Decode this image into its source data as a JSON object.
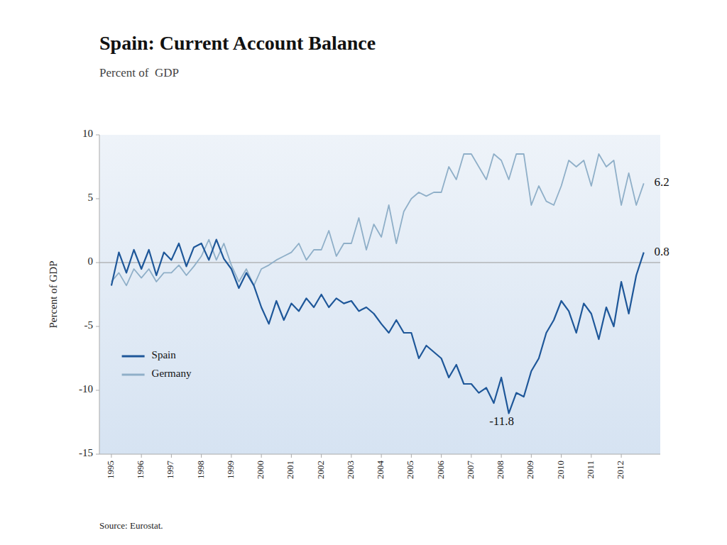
{
  "chart_data": {
    "type": "line",
    "title": "Spain: Current Account Balance",
    "subtitle": "Percent of  GDP",
    "y_label": "Percent of GDP",
    "source": "Source: Eurostat.",
    "x": [
      1995,
      1995.25,
      1995.5,
      1995.75,
      1996,
      1996.25,
      1996.5,
      1996.75,
      1997,
      1997.25,
      1997.5,
      1997.75,
      1998,
      1998.25,
      1998.5,
      1998.75,
      1999,
      1999.25,
      1999.5,
      1999.75,
      2000,
      2000.25,
      2000.5,
      2000.75,
      2001,
      2001.25,
      2001.5,
      2001.75,
      2002,
      2002.25,
      2002.5,
      2002.75,
      2003,
      2003.25,
      2003.5,
      2003.75,
      2004,
      2004.25,
      2004.5,
      2004.75,
      2005,
      2005.25,
      2005.5,
      2005.75,
      2006,
      2006.25,
      2006.5,
      2006.75,
      2007,
      2007.25,
      2007.5,
      2007.75,
      2008,
      2008.25,
      2008.5,
      2008.75,
      2009,
      2009.25,
      2009.5,
      2009.75,
      2010,
      2010.25,
      2010.5,
      2010.75,
      2011,
      2011.25,
      2011.5,
      2011.75,
      2012,
      2012.25,
      2012.5,
      2012.75
    ],
    "series": [
      {
        "name": "Spain",
        "color": "#1e5799",
        "values": [
          -1.8,
          0.8,
          -0.8,
          1.0,
          -0.5,
          1.0,
          -1.0,
          0.8,
          0.2,
          1.5,
          -0.3,
          1.2,
          1.5,
          0.2,
          1.8,
          0.3,
          -0.5,
          -2.0,
          -0.8,
          -1.8,
          -3.5,
          -4.8,
          -3.0,
          -4.5,
          -3.2,
          -3.8,
          -2.8,
          -3.5,
          -2.5,
          -3.5,
          -2.8,
          -3.2,
          -3.0,
          -3.8,
          -3.5,
          -4.0,
          -4.8,
          -5.5,
          -4.5,
          -5.5,
          -5.5,
          -7.5,
          -6.5,
          -7.0,
          -7.5,
          -9.0,
          -8.0,
          -9.5,
          -9.5,
          -10.2,
          -9.8,
          -11.0,
          -9.0,
          -11.8,
          -10.2,
          -10.5,
          -8.5,
          -7.5,
          -5.5,
          -4.5,
          -3.0,
          -3.8,
          -5.5,
          -3.2,
          -4.0,
          -6.0,
          -3.5,
          -5.0,
          -1.5,
          -4.0,
          -1.0,
          0.8
        ]
      },
      {
        "name": "Germany",
        "color": "#8fafc8",
        "values": [
          -1.5,
          -0.8,
          -1.8,
          -0.5,
          -1.2,
          -0.5,
          -1.5,
          -0.8,
          -0.8,
          -0.2,
          -1.0,
          -0.3,
          0.5,
          1.8,
          0.2,
          1.5,
          -0.2,
          -1.5,
          -0.5,
          -1.8,
          -0.5,
          -0.2,
          0.2,
          0.5,
          0.8,
          1.5,
          0.2,
          1.0,
          1.0,
          2.5,
          0.5,
          1.5,
          1.5,
          3.5,
          1.0,
          3.0,
          2.0,
          4.5,
          1.5,
          4.0,
          5.0,
          5.5,
          5.2,
          5.5,
          5.5,
          7.5,
          6.5,
          8.5,
          8.5,
          7.5,
          6.5,
          8.5,
          8.0,
          6.5,
          8.5,
          8.5,
          4.5,
          6.0,
          4.8,
          4.5,
          6.0,
          8.0,
          7.5,
          8.0,
          6.0,
          8.5,
          7.5,
          8.0,
          4.5,
          7.0,
          4.5,
          6.2
        ]
      }
    ],
    "xlim": [
      1994.6,
      2013.3
    ],
    "xticks": [
      1995,
      1996,
      1997,
      1998,
      1999,
      2000,
      2001,
      2002,
      2003,
      2004,
      2005,
      2006,
      2007,
      2008,
      2009,
      2010,
      2011,
      2012
    ],
    "ylim": [
      -15,
      10
    ],
    "yticks": [
      -15,
      -10,
      -5,
      0,
      5,
      10
    ],
    "grid": false,
    "legend": "lower left",
    "annotations": [
      {
        "text": "6.2",
        "x": 2013.1,
        "y": 6.2
      },
      {
        "text": "0.8",
        "x": 2013.1,
        "y": 0.8
      },
      {
        "text": "-11.8",
        "x": 2007.6,
        "y": -12.5
      }
    ]
  }
}
